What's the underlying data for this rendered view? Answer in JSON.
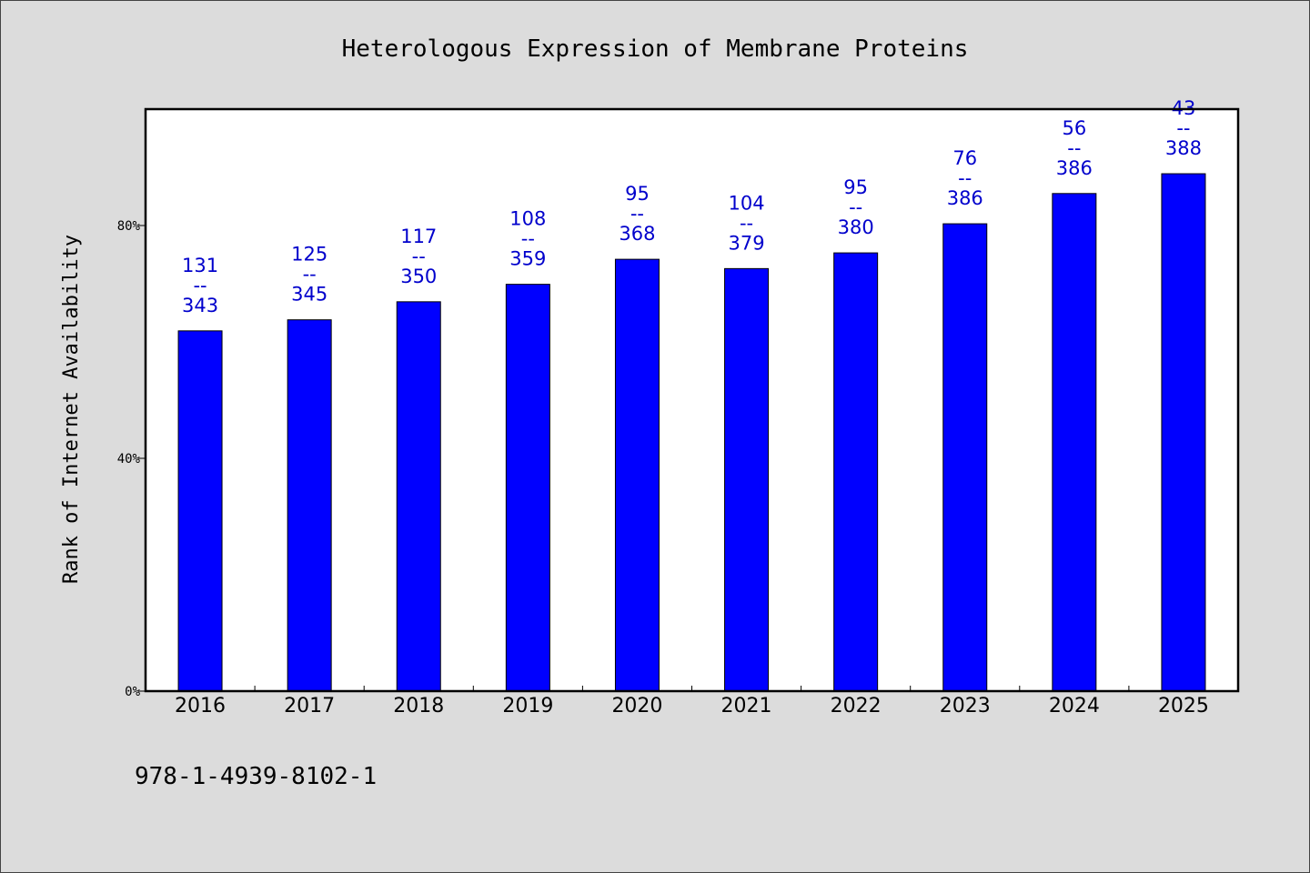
{
  "chart_data": {
    "type": "bar",
    "title": "Heterologous Expression of Membrane Proteins",
    "ylabel": "Rank of Internet Availability",
    "xlabel": "",
    "footer_text": "978-1-4939-8102-1",
    "categories": [
      "2016",
      "2017",
      "2018",
      "2019",
      "2020",
      "2021",
      "2022",
      "2023",
      "2024",
      "2025"
    ],
    "values": [
      61.9,
      63.8,
      66.9,
      69.9,
      74.2,
      72.6,
      75.3,
      80.3,
      85.5,
      88.9
    ],
    "data_labels": [
      [
        "131",
        "--",
        "343"
      ],
      [
        "125",
        "--",
        "345"
      ],
      [
        "117",
        "--",
        "350"
      ],
      [
        "108",
        "--",
        "359"
      ],
      [
        "95",
        "--",
        "368"
      ],
      [
        "104",
        "--",
        "379"
      ],
      [
        "95",
        "--",
        "380"
      ],
      [
        "76",
        "--",
        "386"
      ],
      [
        "56",
        "--",
        "386"
      ],
      [
        "43",
        "--",
        "388"
      ]
    ],
    "yticks": [
      0,
      40,
      80
    ],
    "ytick_labels": [
      "0%",
      "40%",
      "80%"
    ],
    "ylim": [
      0,
      100
    ],
    "grid": false,
    "colors": {
      "bar": "#0000ff",
      "data_label": "#0000cc",
      "background": "#dcdcdc",
      "plot_background": "#ffffff"
    }
  }
}
